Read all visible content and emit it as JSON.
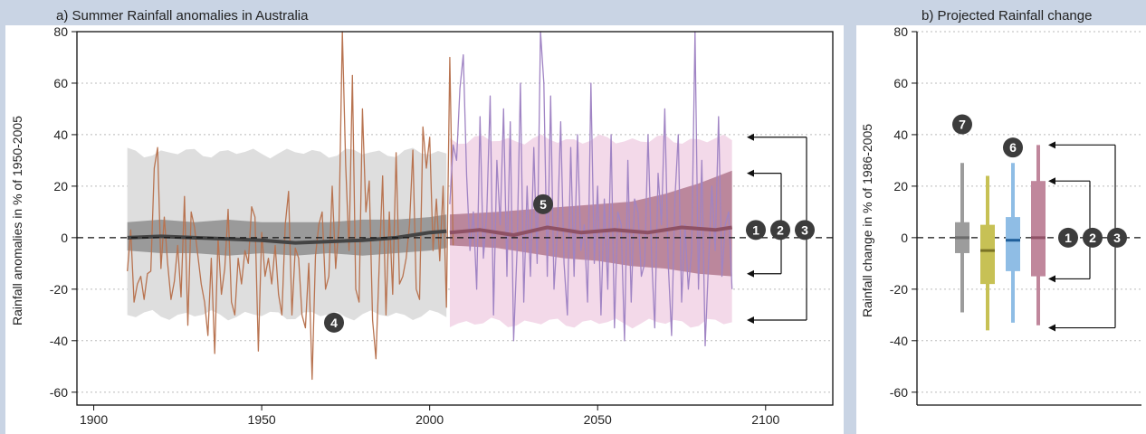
{
  "chart_data": [
    {
      "type": "line",
      "title": "a) Summer Rainfall anomalies in Australia",
      "ylabel": "Rainfall anomalies in % of 1950-2005",
      "xlim": [
        1895,
        2120
      ],
      "ylim": [
        -65,
        80
      ],
      "x_ticks": [
        "1900",
        "1950",
        "2000",
        "2050",
        "2100"
      ],
      "x_tick_values": [
        1900,
        1950,
        2000,
        2050,
        2100
      ],
      "y_ticks": [
        "80",
        "60",
        "40",
        "20",
        "0",
        "-20",
        "-40",
        "-60"
      ],
      "y_tick_values": [
        80,
        60,
        40,
        20,
        0,
        -20,
        -40,
        -60
      ],
      "grid": "horizontal-dotted",
      "bands": {
        "historical_outer": {
          "x": [
            1910,
            2005
          ],
          "lower": -30,
          "upper": 33,
          "color": "#dedede"
        },
        "historical_inner": {
          "x": [
            1910,
            1920,
            1930,
            1940,
            1950,
            1960,
            1970,
            1980,
            1990,
            2000,
            2005
          ],
          "lower": [
            -5,
            -6,
            -6,
            -7,
            -6,
            -7,
            -6,
            -7,
            -6,
            -5,
            -4
          ],
          "upper": [
            6,
            7,
            6,
            7,
            6,
            6,
            6,
            7,
            7,
            8,
            9
          ],
          "color": "#9a9a9a"
        },
        "future_outer": {
          "x": [
            2006,
            2090
          ],
          "lower": -33,
          "upper": 38,
          "color": "#f3d9e9"
        },
        "future_inner": {
          "x": [
            2006,
            2020,
            2030,
            2040,
            2050,
            2060,
            2070,
            2080,
            2090
          ],
          "lower": [
            -3,
            -4,
            -6,
            -8,
            -9,
            -11,
            -12,
            -14,
            -15
          ],
          "upper": [
            9,
            10,
            11,
            12,
            13,
            14,
            17,
            21,
            26
          ],
          "color": "#b57d93"
        }
      },
      "series": [
        {
          "color": "#b87350",
          "x_start": 1910,
          "values": [
            -13,
            3,
            -25,
            -18,
            -15,
            -24,
            -14,
            -13,
            27,
            35,
            -12,
            8,
            -10,
            -24,
            -17,
            -3,
            -23,
            16,
            -34,
            10,
            4,
            -7,
            -18,
            -25,
            -38,
            -8,
            -45,
            0,
            -22,
            -12,
            11,
            -25,
            -30,
            -8,
            -18,
            -5,
            -10,
            12,
            8,
            -44,
            2,
            -15,
            -8,
            -18,
            -3,
            -22,
            -30,
            5,
            18,
            -30,
            -4,
            -8,
            -30,
            -35,
            -10,
            -55,
            -7,
            5,
            10,
            -20,
            -15,
            20,
            -12,
            5,
            80,
            28,
            -5,
            63,
            -20,
            -25,
            50,
            10,
            22,
            -32,
            -47,
            -10,
            24,
            -30,
            10,
            -22,
            33,
            -18,
            -15,
            -8,
            5,
            34,
            -20,
            -24,
            43,
            27,
            39,
            -5,
            15,
            -9,
            20,
            -27,
            70,
            -3
          ]
        },
        {
          "color": "#a084c4",
          "x_start": 2006,
          "values": [
            13,
            36,
            30,
            58,
            71,
            24,
            -5,
            10,
            -20,
            47,
            -8,
            10,
            55,
            -30,
            30,
            5,
            50,
            -15,
            45,
            -40,
            -5,
            60,
            -25,
            20,
            -15,
            35,
            -10,
            82,
            60,
            -15,
            55,
            -20,
            2,
            45,
            -10,
            -30,
            35,
            -15,
            40,
            -5,
            5,
            -25,
            60,
            -10,
            20,
            -30,
            15,
            -20,
            40,
            -35,
            10,
            5,
            -40,
            30,
            -25,
            15,
            10,
            -15,
            -10,
            40,
            -5,
            -35,
            25,
            5,
            50,
            -10,
            -38,
            15,
            40,
            -25,
            5,
            -20,
            -5,
            80,
            -20,
            30,
            -42,
            -10,
            20,
            -5,
            47,
            -15,
            5,
            10,
            -20
          ]
        },
        {
          "color": "#444444",
          "x": [
            1910,
            1920,
            1930,
            1940,
            1950,
            1960,
            1970,
            1980,
            1990,
            2000,
            2005
          ],
          "values": [
            0,
            0.5,
            0,
            -0.5,
            -1,
            -2,
            -1.5,
            -1,
            0,
            2,
            2.5
          ]
        },
        {
          "color": "#8e5165",
          "x": [
            2006,
            2015,
            2025,
            2035,
            2045,
            2055,
            2065,
            2075,
            2085,
            2090
          ],
          "values": [
            2,
            3,
            1,
            4,
            2,
            3,
            2,
            4,
            3,
            4
          ]
        }
      ],
      "annotations": [
        "1",
        "2",
        "3",
        "4",
        "5"
      ]
    },
    {
      "type": "box",
      "title": "b) Projected Rainfall change",
      "ylabel": "Rainfall change in % of 1986-2005",
      "ylim": [
        -65,
        80
      ],
      "y_ticks": [
        "80",
        "60",
        "40",
        "20",
        "0",
        "-20",
        "-40",
        "-60"
      ],
      "y_tick_values": [
        80,
        60,
        40,
        20,
        0,
        -20,
        -40,
        -60
      ],
      "grid": "horizontal-dotted",
      "boxes": [
        {
          "color": "#9c9c9c",
          "whisker": [
            -29,
            29
          ],
          "box": [
            -6,
            6
          ],
          "median": 0
        },
        {
          "color": "#c7c155",
          "whisker": [
            -36,
            24
          ],
          "box": [
            -18,
            5
          ],
          "median": -5,
          "median_color": "#7a7325"
        },
        {
          "color": "#8fbde5",
          "whisker": [
            -33,
            29
          ],
          "box": [
            -13,
            8
          ],
          "median": -1,
          "median_color": "#1f5f9b"
        },
        {
          "color": "#c0879c",
          "whisker": [
            -34,
            36
          ],
          "box": [
            -15,
            22
          ],
          "median": 0,
          "median_color": "#8e5165"
        }
      ],
      "annotations": [
        "1",
        "2",
        "3",
        "6",
        "7"
      ]
    }
  ]
}
